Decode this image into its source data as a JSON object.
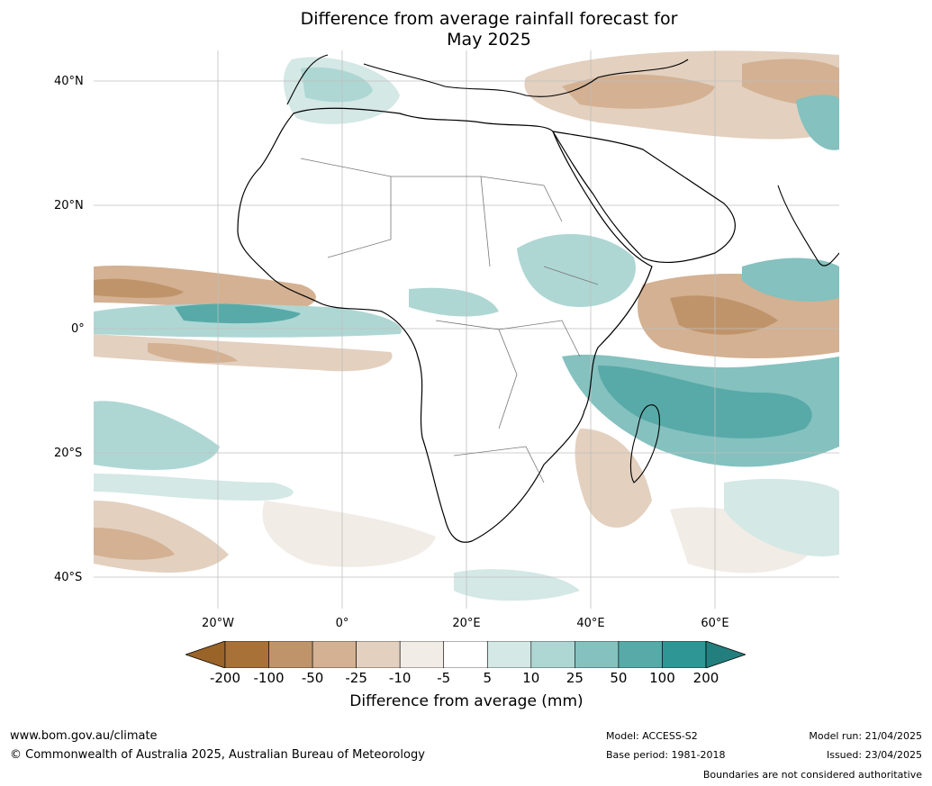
{
  "title_line1": "Difference from average rainfall forecast for",
  "title_line2": "May 2025",
  "lat_labels": [
    "40°N",
    "20°N",
    "0°",
    "20°S",
    "40°S"
  ],
  "lon_labels": [
    "20°W",
    "0°",
    "20°E",
    "40°E",
    "60°E"
  ],
  "legend": {
    "ticks": [
      "-200",
      "-100",
      "-50",
      "-25",
      "-10",
      "-5",
      "5",
      "10",
      "25",
      "50",
      "100",
      "200"
    ],
    "title": "Difference from average (mm)",
    "colors": [
      "#9a6328",
      "#a87138",
      "#c0946a",
      "#d3b192",
      "#e3d0bf",
      "#f1ece6",
      "#ffffff",
      "#d4e8e6",
      "#aed7d4",
      "#84c1bf",
      "#58aaa8",
      "#2e9795",
      "#237f7d"
    ]
  },
  "footer": {
    "url": "www.bom.gov.au/climate",
    "copyright": "© Commonwealth of Australia 2025, Australian Bureau of Meteorology",
    "model": "Model: ACCESS-S2",
    "base_period": "Base period: 1981-2018",
    "model_run": "Model run: 21/04/2025",
    "issued": "Issued: 23/04/2025",
    "disclaimer": "Boundaries are not considered authoritative"
  }
}
